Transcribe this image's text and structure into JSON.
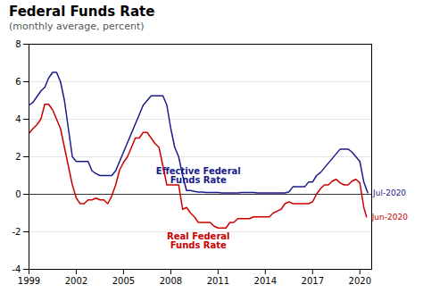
{
  "chart_data": {
    "type": "line",
    "title": "Federal Funds Rate",
    "subtitle": "(monthly average, percent)",
    "xlim": [
      1999,
      2020.75
    ],
    "xticks": [
      1999,
      2002,
      2005,
      2008,
      2011,
      2014,
      2017,
      2020
    ],
    "ylim": [
      -4,
      8
    ],
    "yticks": [
      -4,
      -2,
      0,
      2,
      4,
      6,
      8
    ],
    "grid": true,
    "series": [
      {
        "name": "Effective Federal\nFunds Rate",
        "color": "#1a1a8c",
        "x": [
          1999.0,
          1999.25,
          1999.5,
          1999.75,
          2000.0,
          2000.25,
          2000.5,
          2000.75,
          2001.0,
          2001.25,
          2001.5,
          2001.75,
          2002.0,
          2002.25,
          2002.5,
          2002.75,
          2003.0,
          2003.25,
          2003.5,
          2003.75,
          2004.0,
          2004.25,
          2004.5,
          2004.75,
          2005.0,
          2005.25,
          2005.5,
          2005.75,
          2006.0,
          2006.25,
          2006.5,
          2006.75,
          2007.0,
          2007.25,
          2007.5,
          2007.75,
          2008.0,
          2008.25,
          2008.5,
          2008.75,
          2009.0,
          2009.25,
          2009.5,
          2009.75,
          2010.0,
          2010.25,
          2010.5,
          2010.75,
          2011.0,
          2011.25,
          2011.5,
          2011.75,
          2012.0,
          2012.25,
          2012.5,
          2012.75,
          2013.0,
          2013.25,
          2013.5,
          2013.75,
          2014.0,
          2014.25,
          2014.5,
          2014.75,
          2015.0,
          2015.25,
          2015.5,
          2015.75,
          2016.0,
          2016.25,
          2016.5,
          2016.75,
          2017.0,
          2017.25,
          2017.5,
          2017.75,
          2018.0,
          2018.25,
          2018.5,
          2018.75,
          2019.0,
          2019.25,
          2019.5,
          2019.75,
          2020.0,
          2020.25,
          2020.5
        ],
        "values": [
          4.75,
          4.9,
          5.2,
          5.5,
          5.7,
          6.2,
          6.5,
          6.5,
          6.0,
          5.0,
          3.5,
          2.0,
          1.75,
          1.75,
          1.75,
          1.75,
          1.25,
          1.1,
          1.0,
          1.0,
          1.0,
          1.0,
          1.25,
          1.75,
          2.25,
          2.75,
          3.25,
          3.75,
          4.25,
          4.75,
          5.0,
          5.25,
          5.25,
          5.25,
          5.25,
          4.75,
          3.5,
          2.5,
          2.0,
          1.0,
          0.2,
          0.2,
          0.15,
          0.12,
          0.12,
          0.1,
          0.1,
          0.1,
          0.1,
          0.07,
          0.07,
          0.07,
          0.07,
          0.07,
          0.1,
          0.1,
          0.1,
          0.1,
          0.07,
          0.07,
          0.07,
          0.07,
          0.07,
          0.07,
          0.07,
          0.07,
          0.13,
          0.4,
          0.4,
          0.4,
          0.4,
          0.66,
          0.66,
          1.0,
          1.16,
          1.41,
          1.66,
          1.91,
          2.16,
          2.41,
          2.41,
          2.41,
          2.25,
          2.0,
          1.75,
          0.65,
          0.08
        ]
      },
      {
        "name": "Real Federal\nFunds Rate",
        "color": "#cc0000",
        "x": [
          1999.0,
          1999.25,
          1999.5,
          1999.75,
          2000.0,
          2000.25,
          2000.5,
          2000.75,
          2001.0,
          2001.25,
          2001.5,
          2001.75,
          2002.0,
          2002.25,
          2002.5,
          2002.75,
          2003.0,
          2003.25,
          2003.5,
          2003.75,
          2004.0,
          2004.25,
          2004.5,
          2004.75,
          2005.0,
          2005.25,
          2005.5,
          2005.75,
          2006.0,
          2006.25,
          2006.5,
          2006.75,
          2007.0,
          2007.25,
          2007.5,
          2007.75,
          2008.0,
          2008.25,
          2008.5,
          2008.75,
          2009.0,
          2009.25,
          2009.5,
          2009.75,
          2010.0,
          2010.25,
          2010.5,
          2010.75,
          2011.0,
          2011.25,
          2011.5,
          2011.75,
          2012.0,
          2012.25,
          2012.5,
          2012.75,
          2013.0,
          2013.25,
          2013.5,
          2013.75,
          2014.0,
          2014.25,
          2014.5,
          2014.75,
          2015.0,
          2015.25,
          2015.5,
          2015.75,
          2016.0,
          2016.25,
          2016.5,
          2016.75,
          2017.0,
          2017.25,
          2017.5,
          2017.75,
          2018.0,
          2018.25,
          2018.5,
          2018.75,
          2019.0,
          2019.25,
          2019.5,
          2019.75,
          2020.0,
          2020.25,
          2020.42
        ],
        "values": [
          3.25,
          3.5,
          3.7,
          4.0,
          4.8,
          4.8,
          4.5,
          4.0,
          3.5,
          2.5,
          1.5,
          0.5,
          -0.2,
          -0.5,
          -0.5,
          -0.3,
          -0.3,
          -0.2,
          -0.3,
          -0.3,
          -0.5,
          -0.1,
          0.5,
          1.3,
          1.7,
          2.0,
          2.5,
          3.0,
          3.0,
          3.3,
          3.3,
          3.0,
          2.7,
          2.5,
          1.5,
          0.5,
          0.5,
          0.5,
          0.5,
          -0.8,
          -0.7,
          -1.0,
          -1.2,
          -1.5,
          -1.5,
          -1.5,
          -1.5,
          -1.7,
          -1.8,
          -1.8,
          -1.8,
          -1.5,
          -1.5,
          -1.3,
          -1.3,
          -1.3,
          -1.3,
          -1.2,
          -1.2,
          -1.2,
          -1.2,
          -1.2,
          -1.0,
          -0.9,
          -0.8,
          -0.5,
          -0.4,
          -0.5,
          -0.5,
          -0.5,
          -0.5,
          -0.5,
          -0.4,
          0.0,
          0.3,
          0.5,
          0.5,
          0.7,
          0.8,
          0.6,
          0.5,
          0.5,
          0.7,
          0.8,
          0.6,
          -0.7,
          -1.2
        ]
      }
    ],
    "annotations": [
      {
        "text": "Jul-2020",
        "series": "Effective Federal\nFunds Rate"
      },
      {
        "text": "Jun-2020",
        "series": "Real Federal\nFunds Rate"
      }
    ]
  }
}
